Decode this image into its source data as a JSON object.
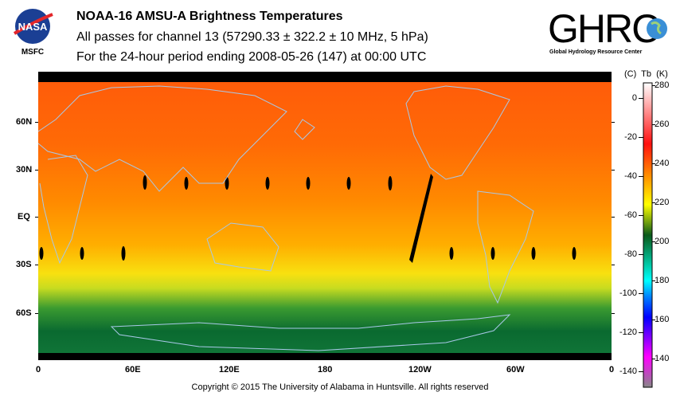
{
  "header": {
    "title": "NOAA-16 AMSU-A Brightness Temperatures",
    "subtitle": "All passes for channel 13 (57290.33 ± 322.2 ± 10 MHz, 5 hPa)",
    "period": "For the 24-hour period ending 2008-05-26 (147) at 00:00 UTC"
  },
  "logos": {
    "nasa": {
      "text": "NASA",
      "sub": "MSFC"
    },
    "ghrc": {
      "text": "GHRC",
      "sub": "Global Hydrology Resource Center"
    }
  },
  "map": {
    "lat_labels": [
      "60N",
      "30N",
      "EQ",
      "30S",
      "60S"
    ],
    "lon_labels": [
      "0",
      "60E",
      "120E",
      "180",
      "120W",
      "60W",
      "0"
    ]
  },
  "colorbar": {
    "header": "(C)  Tb  (K)",
    "kelvin_ticks": [
      "280",
      "260",
      "240",
      "220",
      "200",
      "180",
      "160",
      "140"
    ],
    "celsius_ticks": [
      "0",
      "-20",
      "-40",
      "-60",
      "-80",
      "-100",
      "-120",
      "-140"
    ],
    "colors": [
      "#ffffff",
      "#ff1010",
      "#ff8800",
      "#ffff00",
      "#006622",
      "#00ffff",
      "#0000ff",
      "#ff00ff",
      "#888888"
    ]
  },
  "footer": {
    "copyright": "Copyright © 2015 The University of Alabama in Huntsville.  All rights reserved"
  }
}
